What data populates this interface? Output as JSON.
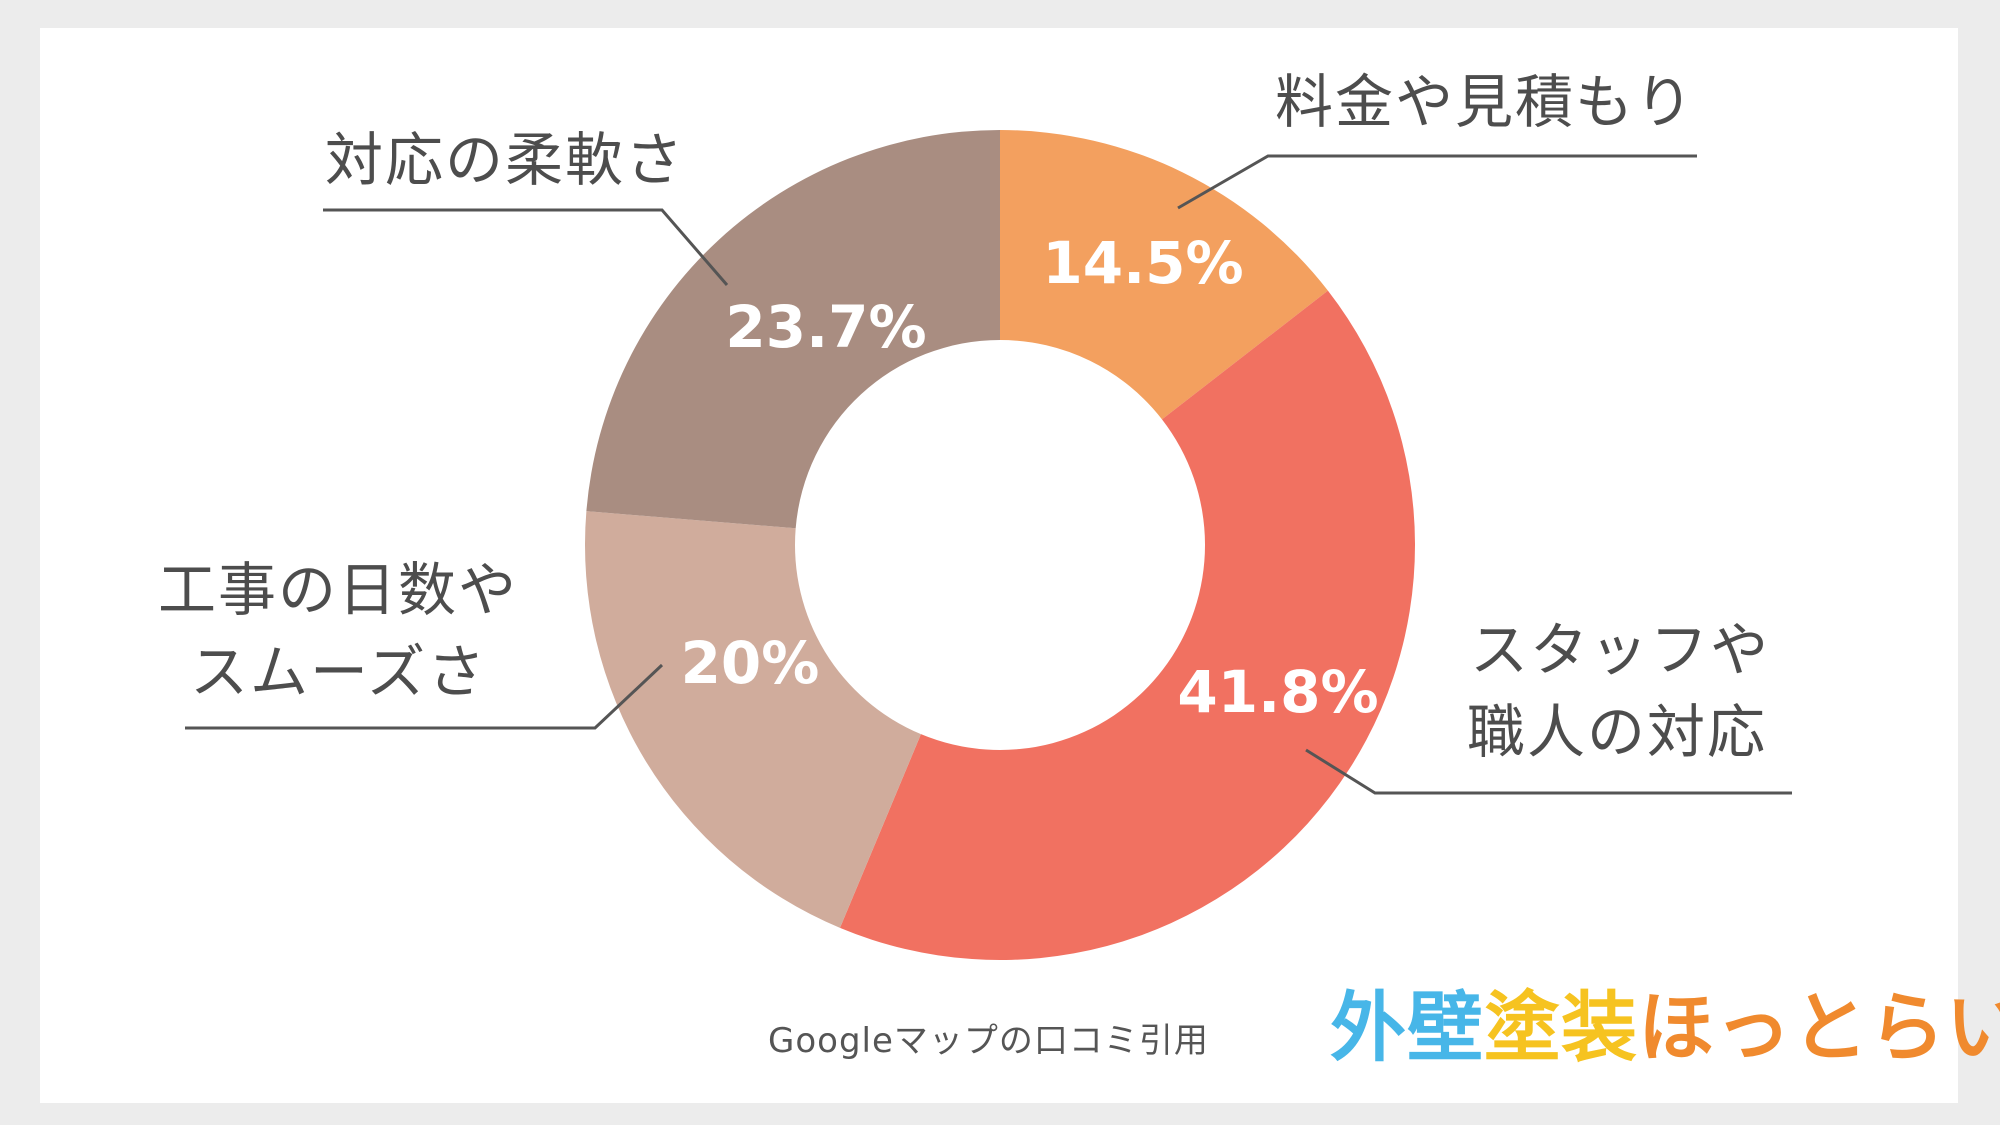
{
  "chart_data": {
    "type": "pie",
    "donut": true,
    "slices": [
      {
        "label": "料金や見積もり",
        "value": 14.5,
        "value_label": "14.5%",
        "color": "#f3a05f"
      },
      {
        "label": "スタッフや職人の対応",
        "value": 41.8,
        "value_label": "41.8%",
        "color": "#f17161"
      },
      {
        "label": "工事の日数やスムーズさ",
        "value": 20,
        "value_label": "20%",
        "color": "#d0ac9c"
      },
      {
        "label": "対応の柔軟さ",
        "value": 23.7,
        "value_label": "23.7%",
        "color": "#a98d81"
      }
    ]
  },
  "labels": {
    "fee": "料金や見積もり",
    "staff_line1": "スタッフや",
    "staff_line2": "職人の対応",
    "days_line1": "工事の日数や",
    "days_line2": "スムーズさ",
    "flex": "対応の柔軟さ"
  },
  "source": "Googleマップの口コミ引用",
  "logo": {
    "part1": "外壁",
    "part2": "塗装",
    "part3": "ほっとらいん"
  }
}
